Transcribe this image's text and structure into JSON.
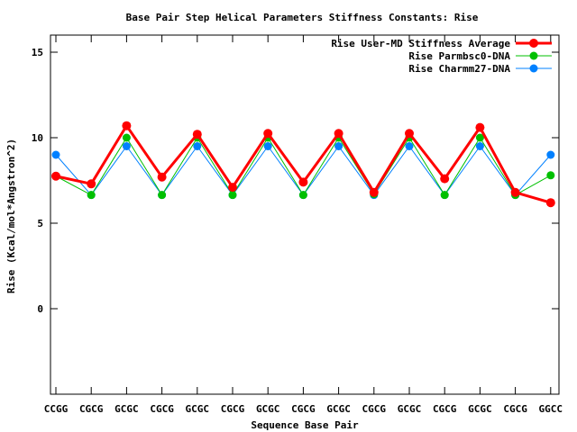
{
  "chart_data": {
    "type": "line",
    "title": "Base Pair Step Helical Parameters Stiffness Constants: Rise",
    "xlabel": "Sequence Base Pair",
    "ylabel": "Rise (Kcal/mol*Angstron^2)",
    "categories": [
      "CCGG",
      "CGCG",
      "GCGC",
      "CGCG",
      "GCGC",
      "CGCG",
      "GCGC",
      "CGCG",
      "GCGC",
      "CGCG",
      "GCGC",
      "CGCG",
      "GCGC",
      "CGCG",
      "GGCC"
    ],
    "ylim": [
      -5,
      16
    ],
    "yticks": [
      0,
      5,
      10,
      15
    ],
    "grid": false,
    "legend_position": "top-right",
    "series": [
      {
        "name": "Rise User-MD Stiffness Average",
        "color": "#ff0000",
        "values": [
          7.75,
          7.3,
          10.7,
          7.7,
          10.2,
          7.1,
          10.25,
          7.4,
          10.25,
          6.8,
          10.25,
          7.6,
          10.6,
          6.8,
          6.2
        ]
      },
      {
        "name": "Rise Parmbsc0-DNA",
        "color": "#00c000",
        "values": [
          7.75,
          6.65,
          10.0,
          6.65,
          10.0,
          6.65,
          10.0,
          6.65,
          10.0,
          6.7,
          10.0,
          6.65,
          10.0,
          6.65,
          7.8
        ]
      },
      {
        "name": "Rise Charmm27-DNA",
        "color": "#0080ff",
        "values": [
          9.0,
          6.65,
          9.5,
          6.65,
          9.5,
          6.65,
          9.5,
          6.65,
          9.5,
          6.65,
          9.5,
          6.65,
          9.5,
          6.65,
          9.0
        ]
      }
    ]
  }
}
